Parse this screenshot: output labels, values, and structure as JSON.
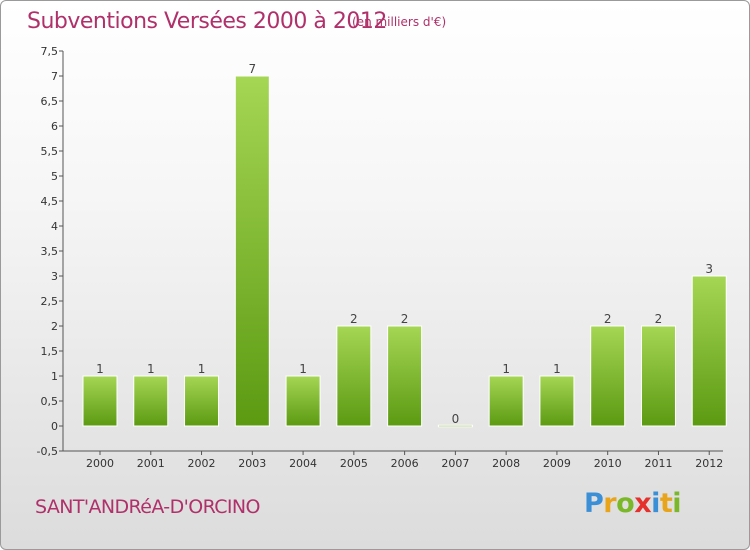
{
  "header": {
    "title": "Subventions Versées 2000 à 2012",
    "subtitle": "(en milliers d'€)"
  },
  "footer": {
    "commune": "SANT'ANDRéA-D'ORCINO",
    "logo_letters": [
      {
        "ch": "P",
        "color": "#3a8fd6"
      },
      {
        "ch": "r",
        "color": "#e8a51b"
      },
      {
        "ch": "o",
        "color": "#7ab829"
      },
      {
        "ch": "x",
        "color": "#e5312d"
      },
      {
        "ch": "i",
        "color": "#3a8fd6"
      },
      {
        "ch": "t",
        "color": "#e8a51b"
      },
      {
        "ch": "i",
        "color": "#7ab829"
      }
    ]
  },
  "colors": {
    "title": "#b0306a",
    "bar_light": "#a5d654",
    "bar_dark": "#5c9a12",
    "axis": "#555555"
  },
  "chart_data": {
    "type": "bar",
    "title": "Subventions Versées 2000 à 2012",
    "subtitle": "(en milliers d'€)",
    "categories": [
      "2000",
      "2001",
      "2002",
      "2003",
      "2004",
      "2005",
      "2006",
      "2007",
      "2008",
      "2009",
      "2010",
      "2011",
      "2012"
    ],
    "values": [
      1,
      1,
      1,
      7,
      1,
      2,
      2,
      0,
      1,
      1,
      2,
      2,
      3
    ],
    "ylim": [
      -0.5,
      7.5
    ],
    "yticks": [
      "-0,5",
      "0",
      "0,5",
      "1",
      "1,5",
      "2",
      "2,5",
      "3",
      "3,5",
      "4",
      "4,5",
      "5",
      "5,5",
      "6",
      "6,5",
      "7",
      "7,5"
    ],
    "ytick_values": [
      -0.5,
      0,
      0.5,
      1,
      1.5,
      2,
      2.5,
      3,
      3.5,
      4,
      4.5,
      5,
      5.5,
      6,
      6.5,
      7,
      7.5
    ],
    "grid": false,
    "legend": "none"
  }
}
